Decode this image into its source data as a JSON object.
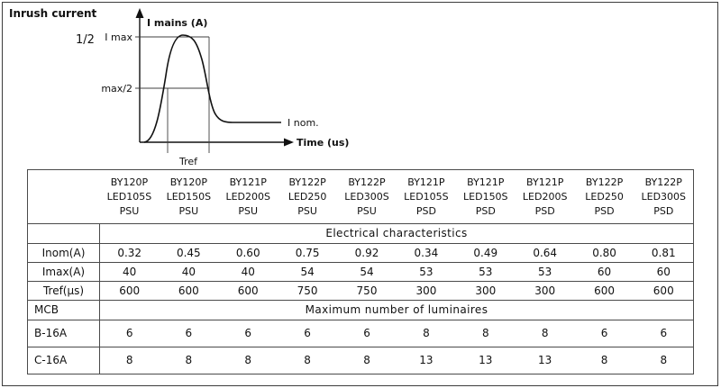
{
  "page": {
    "title": "Inrush current",
    "marker": "1/2"
  },
  "graph": {
    "y_axis_label": "I mains (A)",
    "x_axis_label": "Time (us)",
    "imax_label": "I max",
    "half_label": "max/2",
    "inom_label": "I nom.",
    "tref_label": "Tref"
  },
  "table": {
    "columns": [
      {
        "lines": [
          "BY120P",
          "LED105S",
          "PSU"
        ]
      },
      {
        "lines": [
          "BY120P",
          "LED150S",
          "PSU"
        ]
      },
      {
        "lines": [
          "BY121P",
          "LED200S",
          "PSU"
        ]
      },
      {
        "lines": [
          "BY122P",
          "LED250",
          "PSU"
        ]
      },
      {
        "lines": [
          "BY122P",
          "LED300S",
          "PSU"
        ]
      },
      {
        "lines": [
          "BY121P",
          "LED105S",
          "PSD"
        ]
      },
      {
        "lines": [
          "BY121P",
          "LED150S",
          "PSD"
        ]
      },
      {
        "lines": [
          "BY121P",
          "LED200S",
          "PSD"
        ]
      },
      {
        "lines": [
          "BY122P",
          "LED250",
          "PSD"
        ]
      },
      {
        "lines": [
          "BY122P",
          "LED300S",
          "PSD"
        ]
      }
    ],
    "sections": [
      {
        "header": {
          "label": "",
          "title": "Electrical characteristics"
        },
        "rows": [
          {
            "label": "Inom(A)",
            "values": [
              "0.32",
              "0.45",
              "0.60",
              "0.75",
              "0.92",
              "0.34",
              "0.49",
              "0.64",
              "0.80",
              "0.81"
            ]
          },
          {
            "label": "Imax(A)",
            "values": [
              "40",
              "40",
              "40",
              "54",
              "54",
              "53",
              "53",
              "53",
              "60",
              "60"
            ]
          },
          {
            "label": "Tref(µs)",
            "values": [
              "600",
              "600",
              "600",
              "750",
              "750",
              "300",
              "300",
              "300",
              "600",
              "600"
            ]
          }
        ]
      },
      {
        "header": {
          "label": "MCB",
          "title": "Maximum number of luminaires"
        },
        "rows": [
          {
            "label": "B-16A",
            "values": [
              "6",
              "6",
              "6",
              "6",
              "6",
              "8",
              "8",
              "8",
              "6",
              "6"
            ]
          },
          {
            "label": "C-16A",
            "values": [
              "8",
              "8",
              "8",
              "8",
              "8",
              "13",
              "13",
              "13",
              "8",
              "8"
            ]
          }
        ]
      }
    ]
  }
}
